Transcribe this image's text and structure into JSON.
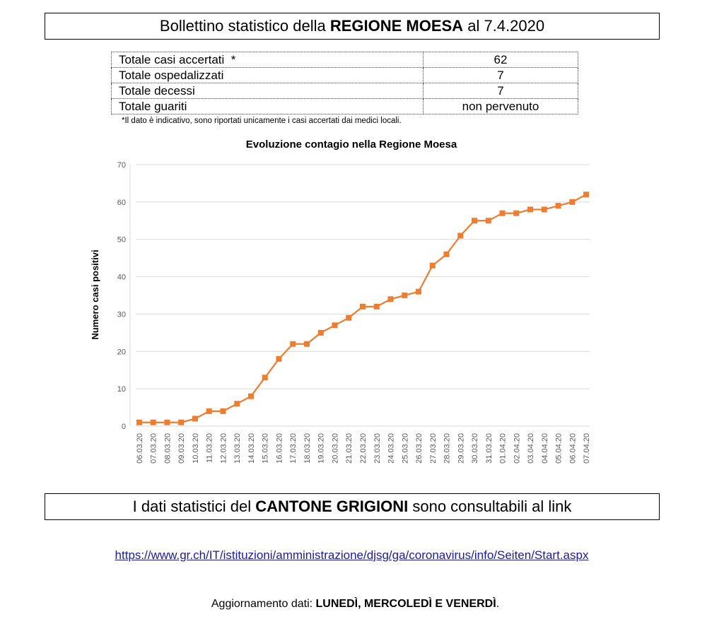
{
  "header": {
    "title_prefix": "Bollettino statistico della",
    "title_bold": "REGIONE MOESA",
    "title_suffix": "al 7.4.2020"
  },
  "stats_table": {
    "rows": [
      {
        "label": "Totale casi accertati  *",
        "value": "62"
      },
      {
        "label": "Totale ospedalizzati",
        "value": "7"
      },
      {
        "label": "Totale decessi",
        "value": "7"
      },
      {
        "label": "Totale guariti",
        "value": "non pervenuto"
      }
    ],
    "footnote": "*Il dato è indicativo, sono riportati unicamente i casi accertati dai medici locali."
  },
  "chart_data": {
    "type": "line",
    "title": "Evoluzione contagio nella Regione Moesa",
    "xlabel": "",
    "ylabel": "Numero casi positivi",
    "ylim": [
      0,
      70
    ],
    "yticks": [
      0,
      10,
      20,
      30,
      40,
      50,
      60,
      70
    ],
    "grid": true,
    "color": "#ed7d31",
    "categories": [
      "06.03.20",
      "07.03.20",
      "08.03.20",
      "09.03.20",
      "10.03.20",
      "11.03.20",
      "12.03.20",
      "13.03.20",
      "14.03.20",
      "15.03.20",
      "16.03.20",
      "17.03.20",
      "18.03.20",
      "19.03.20",
      "20.03.20",
      "21.03.20",
      "22.03.20",
      "23.03.20",
      "24.03.20",
      "25.03.20",
      "26.03.20",
      "27.03.20",
      "28.03.20",
      "29.03.20",
      "30.03.20",
      "31.03.20",
      "01.04.20",
      "02.04.20",
      "03.04.20",
      "04.04.20",
      "05.04.20",
      "06.04.20",
      "07.04.20"
    ],
    "values": [
      1,
      1,
      1,
      1,
      2,
      4,
      4,
      6,
      8,
      13,
      18,
      22,
      22,
      25,
      27,
      29,
      32,
      32,
      34,
      35,
      36,
      43,
      46,
      51,
      55,
      55,
      57,
      57,
      58,
      58,
      59,
      60,
      62
    ]
  },
  "cantone": {
    "prefix": "I dati statistici del",
    "bold": "CANTONE GRIGIONI",
    "suffix": "sono consultabili al link"
  },
  "link": {
    "url": "https://www.gr.ch/IT/istituzioni/amministrazione/djsg/ga/coronavirus/info/Seiten/Start.aspx"
  },
  "update": {
    "prefix": "Aggiornamento dati:",
    "bold": "LUNEDÌ, MERCOLEDÌ E VENERDÌ",
    "suffix": "."
  }
}
